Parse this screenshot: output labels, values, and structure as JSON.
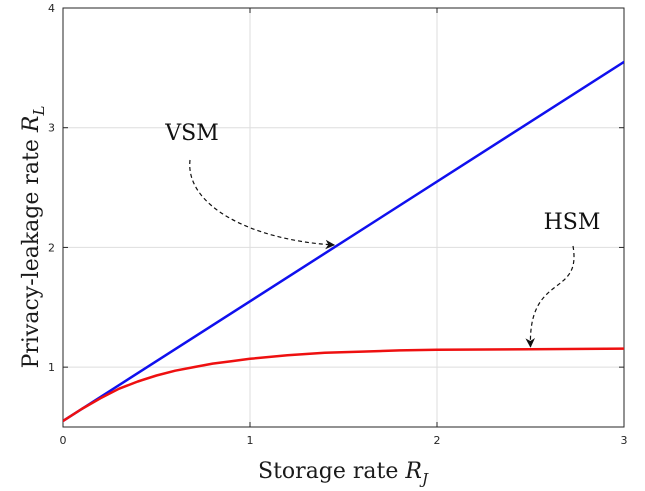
{
  "chart_data": {
    "type": "line",
    "xlabel_text": "Storage rate ",
    "xlabel_sym": "R",
    "xlabel_sub": "J",
    "ylabel_text": "Privacy-leakage rate ",
    "ylabel_sym": "R",
    "ylabel_sub": "L",
    "xlim": [
      0,
      3
    ],
    "ylim": [
      0.5,
      4
    ],
    "xticks": [
      "0",
      "1",
      "2",
      "3"
    ],
    "yticks": [
      "1",
      "2",
      "3",
      "4"
    ],
    "grid": true,
    "series": [
      {
        "name": "VSM",
        "color": "#1010ee",
        "x": [
          0,
          3
        ],
        "y": [
          0.55,
          3.55
        ]
      },
      {
        "name": "HSM",
        "color": "#ee1010",
        "x": [
          0,
          0.1,
          0.2,
          0.3,
          0.4,
          0.5,
          0.6,
          0.7,
          0.8,
          0.9,
          1.0,
          1.2,
          1.4,
          1.6,
          1.8,
          2.0,
          2.5,
          3.0
        ],
        "y": [
          0.55,
          0.65,
          0.74,
          0.82,
          0.88,
          0.93,
          0.97,
          1.0,
          1.03,
          1.05,
          1.07,
          1.1,
          1.12,
          1.13,
          1.14,
          1.145,
          1.15,
          1.155
        ]
      }
    ],
    "annotations": [
      {
        "text": "VSM",
        "target": [
          1.45,
          2.02
        ]
      },
      {
        "text": "HSM",
        "target": [
          2.5,
          1.17
        ]
      }
    ]
  }
}
